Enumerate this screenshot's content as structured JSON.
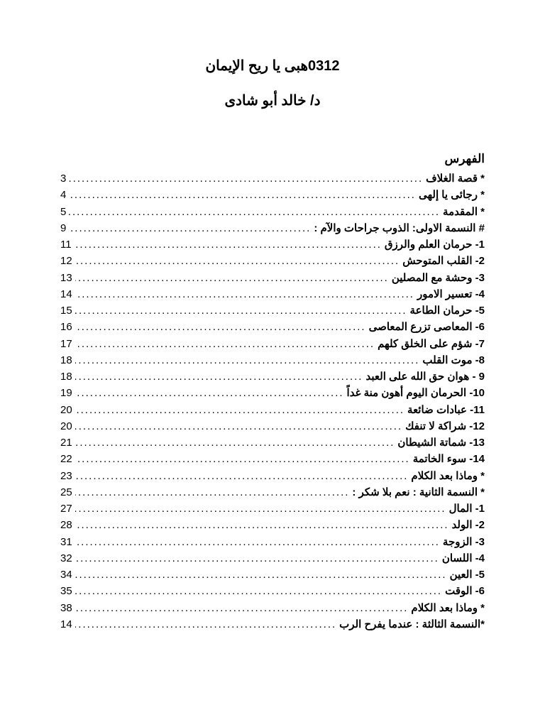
{
  "header": {
    "title": "0312هبى يا ريح الإيمان",
    "author": "د/ خالد أبو شادى"
  },
  "index_heading": "الفهرس",
  "toc": [
    {
      "label": "* قصة الغلاف",
      "page": "3"
    },
    {
      "label": "* رجائى يا إلهى",
      "page": "4"
    },
    {
      "label": "* المقدمة",
      "page": "5"
    },
    {
      "label": "# النسمة الاولى: الذوب جراحات والآم :",
      "page": "9"
    },
    {
      "label": "1- حرمان العلم والرزق",
      "page": "11"
    },
    {
      "label": "2- القلب المتوحش",
      "page": "12"
    },
    {
      "label": "3-  وحشة مع المصلين",
      "page": "13"
    },
    {
      "label": "4- تعسير الامور",
      "page": "14"
    },
    {
      "label": "5- حرمان الطاعة",
      "page": "15"
    },
    {
      "label": "6- المعاصى تزرع المعاصى",
      "page": "16"
    },
    {
      "label": "7- شؤم على الخلق كلهم",
      "page": "17"
    },
    {
      "label": "8- موت القلب",
      "page": "18"
    },
    {
      "label": "9  - هوان حق الله على العبد",
      "page": "18"
    },
    {
      "label": "10- الحرمان اليوم أهون منة غداً",
      "page": "19"
    },
    {
      "label": "11- عبادات ضائعة",
      "page": "20"
    },
    {
      "label": "12- شراكة لا تنفك",
      "page": "20"
    },
    {
      "label": "13- شماتة الشيطان",
      "page": "21"
    },
    {
      "label": "14- سوء الخاتمة",
      "page": "22"
    },
    {
      "label": "*  وماذا بعد الكلام",
      "page": "23"
    },
    {
      "label": "* النسمة الثانية : نعم بلا شكر :",
      "page": "25"
    },
    {
      "label": "1- المال",
      "page": "27"
    },
    {
      "label": "2- الولد",
      "page": "28"
    },
    {
      "label": "3- الزوجة",
      "page": "31"
    },
    {
      "label": "4- اللسان",
      "page": "32"
    },
    {
      "label": "5- العين",
      "page": "34"
    },
    {
      "label": "6- الوقت",
      "page": "35"
    },
    {
      "label": "* وماذا بعد الكلام",
      "page": "38"
    },
    {
      "label": "*النسمة الثالثة : عندما يفرح الرب",
      "page": "14"
    }
  ]
}
